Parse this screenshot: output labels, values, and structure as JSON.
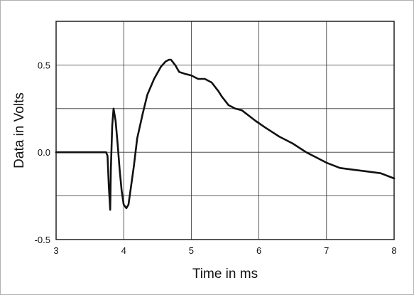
{
  "chart_data": {
    "type": "line",
    "title": "",
    "xlabel": "Time in ms",
    "ylabel": "Data in Volts",
    "xlim": [
      3,
      8
    ],
    "ylim": [
      -0.5,
      0.75
    ],
    "xticks": [
      "3",
      "4",
      "5",
      "6",
      "7",
      "8"
    ],
    "xtick_values": [
      3,
      4,
      5,
      6,
      7,
      8
    ],
    "yticks": [
      "-0.5",
      "0.0",
      "0.5"
    ],
    "ytick_values": [
      -0.5,
      0.0,
      0.5
    ],
    "grid": true,
    "series": [
      {
        "points": [
          [
            3.0,
            0.0
          ],
          [
            3.5,
            0.0
          ],
          [
            3.74,
            0.0
          ],
          [
            3.76,
            -0.02
          ],
          [
            3.78,
            -0.2
          ],
          [
            3.8,
            -0.33
          ],
          [
            3.81,
            -0.1
          ],
          [
            3.83,
            0.15
          ],
          [
            3.85,
            0.25
          ],
          [
            3.88,
            0.18
          ],
          [
            3.91,
            0.05
          ],
          [
            3.94,
            -0.1
          ],
          [
            3.97,
            -0.22
          ],
          [
            4.0,
            -0.3
          ],
          [
            4.04,
            -0.32
          ],
          [
            4.07,
            -0.3
          ],
          [
            4.1,
            -0.22
          ],
          [
            4.15,
            -0.08
          ],
          [
            4.2,
            0.08
          ],
          [
            4.28,
            0.22
          ],
          [
            4.35,
            0.33
          ],
          [
            4.45,
            0.42
          ],
          [
            4.55,
            0.49
          ],
          [
            4.62,
            0.52
          ],
          [
            4.67,
            0.53
          ],
          [
            4.7,
            0.53
          ],
          [
            4.76,
            0.5
          ],
          [
            4.82,
            0.46
          ],
          [
            4.9,
            0.45
          ],
          [
            5.0,
            0.44
          ],
          [
            5.1,
            0.42
          ],
          [
            5.2,
            0.42
          ],
          [
            5.3,
            0.4
          ],
          [
            5.4,
            0.35
          ],
          [
            5.45,
            0.32
          ],
          [
            5.55,
            0.27
          ],
          [
            5.65,
            0.25
          ],
          [
            5.75,
            0.24
          ],
          [
            5.85,
            0.21
          ],
          [
            5.95,
            0.18
          ],
          [
            6.1,
            0.14
          ],
          [
            6.3,
            0.09
          ],
          [
            6.5,
            0.05
          ],
          [
            6.7,
            0.0
          ],
          [
            6.9,
            -0.04
          ],
          [
            7.0,
            -0.06
          ],
          [
            7.2,
            -0.09
          ],
          [
            7.4,
            -0.1
          ],
          [
            7.6,
            -0.11
          ],
          [
            7.8,
            -0.12
          ],
          [
            8.0,
            -0.15
          ]
        ]
      }
    ]
  },
  "colors": {
    "line": "#111111",
    "grid": "#333333",
    "frame": "#b0b0b0"
  }
}
